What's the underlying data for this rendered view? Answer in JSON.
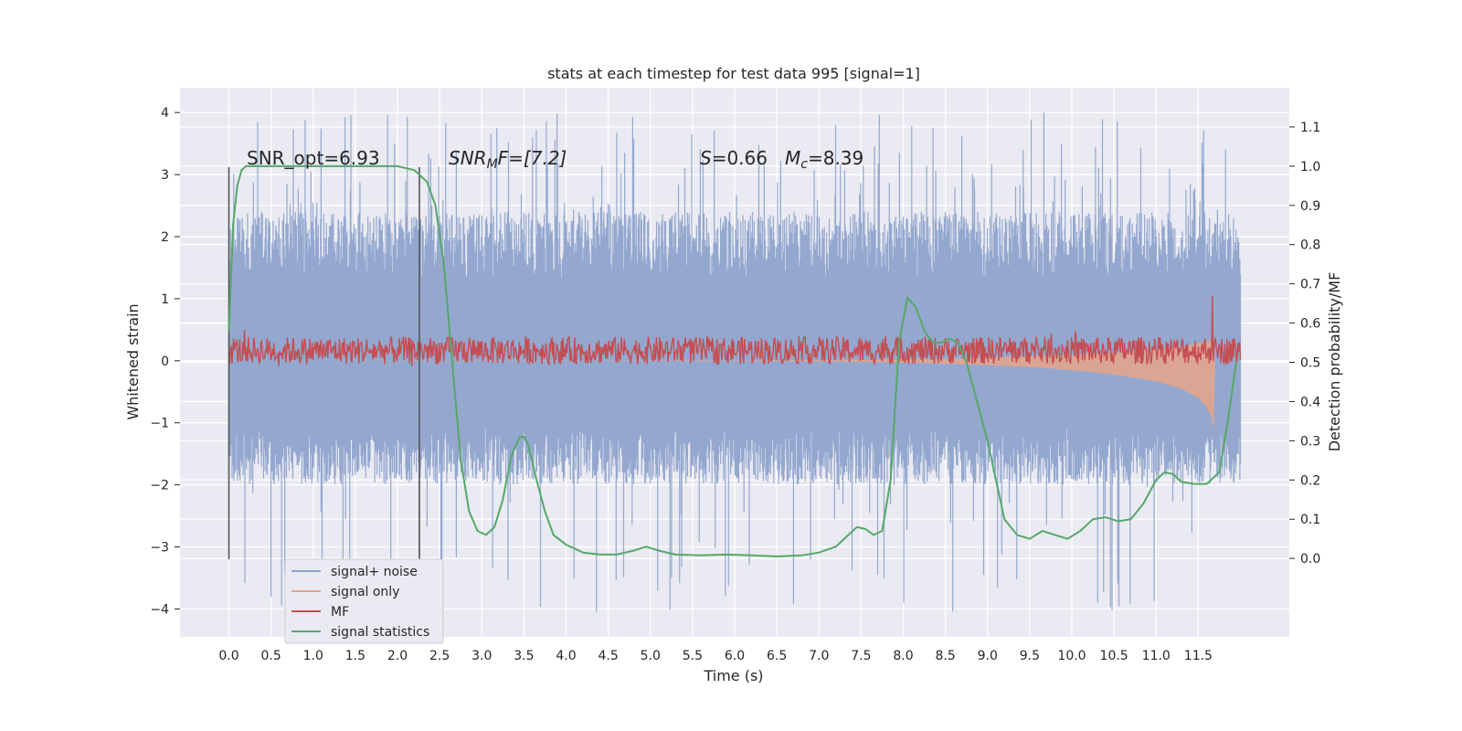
{
  "chart_data": {
    "type": "line",
    "title": "stats at each timestep for test data 995 [signal=1]",
    "xlabel": "Time (s)",
    "ylabel": "Whitened strain",
    "ylabel_right": "Detection probability/MF",
    "xlim": [
      -0.58,
      12.58
    ],
    "ylim": [
      -4.45,
      4.4
    ],
    "ylim_right": [
      -0.2,
      1.2
    ],
    "x_ticks": [
      "0.0",
      "0.5",
      "1.0",
      "1.5",
      "2.0",
      "2.5",
      "3.0",
      "3.5",
      "4.0",
      "4.5",
      "5.0",
      "5.5",
      "6.0",
      "6.5",
      "7.0",
      "7.5",
      "8.0",
      "8.5",
      "9.0",
      "9.5",
      "10.0",
      "10.5",
      "11.0",
      "11.5"
    ],
    "y_ticks": [
      "4",
      "3",
      "2",
      "1",
      "0",
      "−1",
      "−2",
      "−3",
      "−4"
    ],
    "y_ticks_right": [
      "1.1",
      "1.0",
      "0.9",
      "0.8",
      "0.7",
      "0.6",
      "0.5",
      "0.4",
      "0.3",
      "0.2",
      "0.1",
      "0.0"
    ],
    "grid": true,
    "legend_position": "bottom-left",
    "annotations": {
      "snr_opt": "SNR_opt=6.93",
      "snr_mf_italic": "SNR",
      "snr_mf_sub": "M",
      "snr_mf_rest": "F=[7.2]",
      "s_italic": "S",
      "s_value": "=0.66",
      "mc_italic": "M",
      "mc_sub": "c",
      "mc_value": "=8.39"
    },
    "vertical_markers": [
      0.0,
      2.26
    ],
    "series": [
      {
        "name": "signal+ noise",
        "axis": "left",
        "color": "#8fa4cc",
        "x_range": [
          0.0,
          12.0
        ],
        "envelope_upper": 2.4,
        "envelope_lower": -2.0,
        "spike_max": 4.0,
        "spike_min": -4.1
      },
      {
        "name": "signal only",
        "axis": "left",
        "color": "#e8a488",
        "x": [
          0.0,
          6.0,
          7.0,
          8.0,
          8.5,
          9.0,
          9.5,
          10.0,
          10.5,
          11.0,
          11.3,
          11.5,
          11.6,
          11.65,
          11.68,
          11.7
        ],
        "upper": [
          0.0,
          0.005,
          0.01,
          0.02,
          0.03,
          0.05,
          0.07,
          0.1,
          0.13,
          0.18,
          0.22,
          0.28,
          0.3,
          0.32,
          0.25,
          0.0
        ],
        "lower": [
          0.0,
          -0.005,
          -0.01,
          -0.03,
          -0.05,
          -0.07,
          -0.1,
          -0.15,
          -0.22,
          -0.33,
          -0.45,
          -0.6,
          -0.75,
          -0.9,
          -1.1,
          0.0
        ]
      },
      {
        "name": "MF",
        "axis": "right",
        "color": "#c44e52",
        "x_range": [
          0.0,
          12.0
        ],
        "baseline": 0.53,
        "noise_amplitude": 0.035,
        "peak_x": 11.67,
        "peak_y": 0.67
      },
      {
        "name": "signal statistics",
        "axis": "right",
        "color": "#55a868",
        "x": [
          0.0,
          0.05,
          0.1,
          0.15,
          0.2,
          0.3,
          0.5,
          1.0,
          1.5,
          2.0,
          2.2,
          2.35,
          2.45,
          2.55,
          2.65,
          2.75,
          2.85,
          2.95,
          3.05,
          3.15,
          3.25,
          3.35,
          3.45,
          3.5,
          3.55,
          3.65,
          3.75,
          3.85,
          4.0,
          4.2,
          4.4,
          4.6,
          4.8,
          4.95,
          5.1,
          5.3,
          5.6,
          5.9,
          6.2,
          6.5,
          6.8,
          7.0,
          7.2,
          7.35,
          7.45,
          7.55,
          7.65,
          7.75,
          7.85,
          7.95,
          8.05,
          8.15,
          8.25,
          8.35,
          8.45,
          8.55,
          8.65,
          8.75,
          8.85,
          9.0,
          9.1,
          9.2,
          9.35,
          9.5,
          9.65,
          9.8,
          9.95,
          10.1,
          10.25,
          10.4,
          10.55,
          10.7,
          10.85,
          11.0,
          11.1,
          11.2,
          11.3,
          11.45,
          11.6,
          11.75,
          11.85,
          11.95
        ],
        "y": [
          0.58,
          0.85,
          0.95,
          0.99,
          1.0,
          1.0,
          1.0,
          1.0,
          1.0,
          1.0,
          0.99,
          0.96,
          0.9,
          0.75,
          0.5,
          0.25,
          0.12,
          0.07,
          0.06,
          0.08,
          0.15,
          0.26,
          0.31,
          0.31,
          0.29,
          0.2,
          0.12,
          0.06,
          0.035,
          0.015,
          0.01,
          0.01,
          0.02,
          0.03,
          0.02,
          0.01,
          0.008,
          0.01,
          0.008,
          0.005,
          0.008,
          0.015,
          0.03,
          0.06,
          0.08,
          0.075,
          0.06,
          0.07,
          0.2,
          0.55,
          0.665,
          0.64,
          0.58,
          0.55,
          0.55,
          0.56,
          0.55,
          0.5,
          0.42,
          0.3,
          0.2,
          0.1,
          0.06,
          0.05,
          0.07,
          0.06,
          0.05,
          0.07,
          0.1,
          0.105,
          0.095,
          0.1,
          0.14,
          0.2,
          0.22,
          0.215,
          0.195,
          0.19,
          0.19,
          0.22,
          0.35,
          0.5
        ]
      }
    ]
  }
}
